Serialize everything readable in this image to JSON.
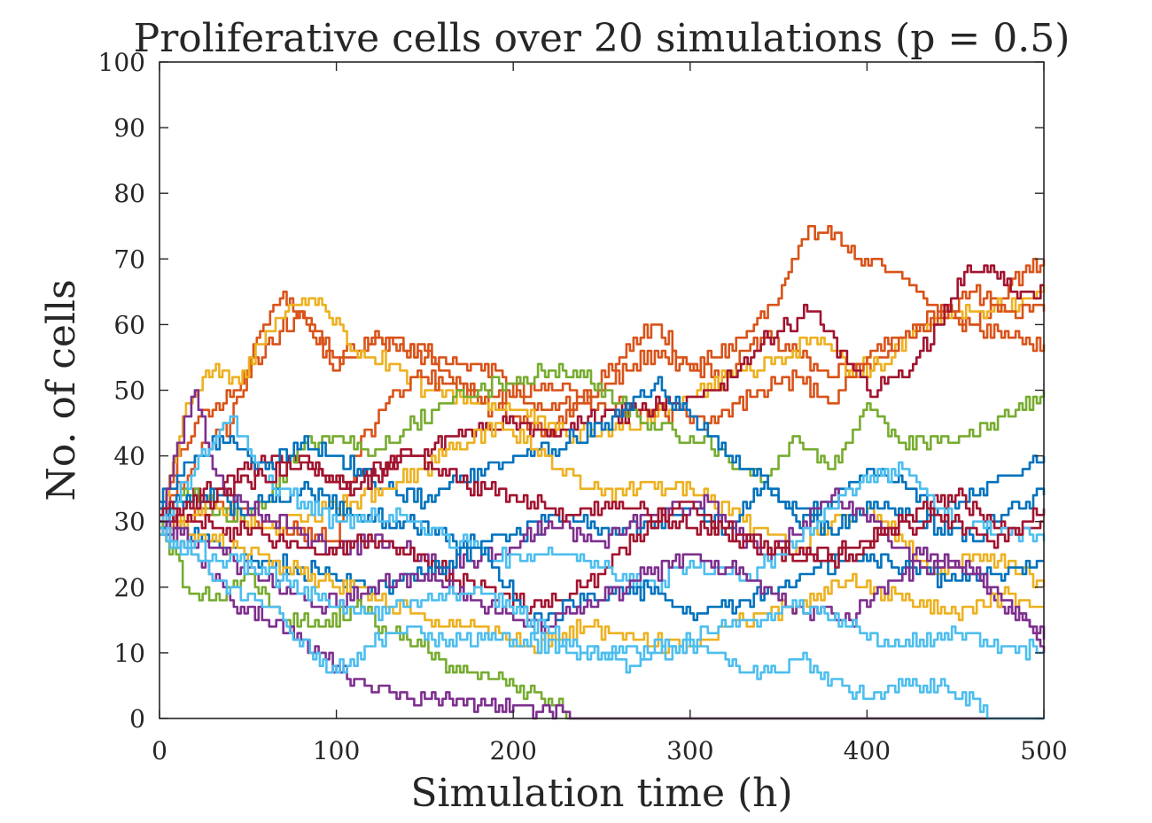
{
  "chart_data": {
    "type": "line",
    "title": "Proliferative cells over 20 simulations (p = 0.5)",
    "xlabel": "Simulation time (h)",
    "ylabel": "No. of cells",
    "xlim": [
      0,
      500
    ],
    "ylim": [
      0,
      100
    ],
    "xticks": [
      0,
      100,
      200,
      300,
      400,
      500
    ],
    "yticks": [
      0,
      10,
      20,
      30,
      40,
      50,
      60,
      70,
      80,
      90,
      100
    ],
    "grid": false,
    "legend": "none",
    "palette": [
      "#0072BD",
      "#D95319",
      "#EDB120",
      "#7E2F8E",
      "#77AC30",
      "#4DBEEE",
      "#A2142F"
    ],
    "series": [
      {
        "color": "#D95319",
        "x": [
          0,
          20,
          40,
          55,
          70,
          85,
          100,
          120,
          150,
          180,
          200,
          220,
          250,
          280,
          300,
          330,
          350,
          365,
          378,
          395,
          420,
          440,
          460,
          480,
          500
        ],
        "y": [
          30,
          40,
          45,
          58,
          65,
          59,
          53,
          58,
          56,
          48,
          46,
          44,
          50,
          56,
          53,
          58,
          64,
          73,
          75,
          70,
          67,
          62,
          60,
          66,
          70
        ]
      },
      {
        "color": "#D95319",
        "x": [
          0,
          20,
          40,
          60,
          80,
          100,
          110,
          130,
          150,
          170,
          190,
          210,
          240,
          260,
          280,
          300,
          320,
          340,
          360,
          380,
          400,
          420,
          440,
          460,
          480,
          500
        ],
        "y": [
          32,
          45,
          49,
          57,
          62,
          55,
          56,
          58,
          55,
          54,
          53,
          48,
          48,
          55,
          60,
          54,
          52,
          58,
          56,
          52,
          54,
          58,
          62,
          60,
          58,
          57
        ]
      },
      {
        "color": "#EDB120",
        "x": [
          0,
          15,
          30,
          45,
          60,
          75,
          90,
          110,
          130,
          150,
          170,
          200,
          230,
          260,
          290,
          320,
          350,
          370,
          390,
          410,
          430,
          450,
          470,
          490,
          500
        ],
        "y": [
          30,
          48,
          53,
          51,
          59,
          63,
          64,
          56,
          54,
          50,
          49,
          47,
          43,
          44,
          48,
          52,
          55,
          58,
          53,
          54,
          60,
          62,
          62,
          64,
          66
        ]
      },
      {
        "color": "#D95319",
        "x": [
          0,
          30,
          60,
          100,
          110,
          130,
          150,
          170,
          190,
          220,
          250,
          280,
          310,
          340,
          360,
          380,
          400,
          420,
          440,
          460,
          480,
          500
        ],
        "y": [
          28,
          32,
          30,
          27,
          40,
          49,
          52,
          50,
          49,
          51,
          48,
          47,
          45,
          50,
          52,
          48,
          55,
          58,
          61,
          65,
          62,
          62
        ]
      },
      {
        "color": "#A2142F",
        "x": [
          0,
          25,
          50,
          75,
          100,
          125,
          150,
          175,
          200,
          225,
          250,
          275,
          300,
          325,
          340,
          355,
          370,
          385,
          400,
          420,
          440,
          455,
          470,
          485,
          500
        ],
        "y": [
          29,
          35,
          38,
          40,
          36,
          38,
          41,
          44,
          45,
          43,
          46,
          47,
          49,
          52,
          57,
          60,
          62,
          56,
          50,
          52,
          60,
          68,
          69,
          64,
          66
        ]
      },
      {
        "color": "#77AC30",
        "x": [
          0,
          20,
          40,
          60,
          80,
          100,
          120,
          140,
          160,
          180,
          200,
          220,
          240,
          260,
          280,
          300,
          320,
          340,
          360,
          380,
          400,
          420,
          440,
          460,
          480,
          500
        ],
        "y": [
          31,
          35,
          30,
          33,
          41,
          43,
          40,
          44,
          48,
          50,
          51,
          53,
          52,
          48,
          44,
          43,
          40,
          36,
          43,
          38,
          48,
          42,
          42,
          43,
          46,
          50
        ]
      },
      {
        "color": "#0072BD",
        "x": [
          0,
          20,
          40,
          60,
          80,
          100,
          120,
          150,
          180,
          200,
          230,
          260,
          280,
          300,
          320,
          340,
          360,
          380,
          400,
          420,
          440,
          460,
          480,
          500
        ],
        "y": [
          33,
          40,
          43,
          38,
          42,
          40,
          36,
          33,
          38,
          40,
          42,
          46,
          51,
          46,
          40,
          37,
          30,
          33,
          38,
          36,
          31,
          34,
          37,
          40
        ]
      },
      {
        "color": "#EDB120",
        "x": [
          0,
          30,
          60,
          100,
          130,
          160,
          190,
          220,
          250,
          280,
          300,
          330,
          360,
          380,
          400,
          420,
          440,
          460,
          480,
          500
        ],
        "y": [
          28,
          33,
          29,
          32,
          35,
          40,
          45,
          40,
          34,
          35,
          35,
          30,
          26,
          30,
          32,
          27,
          22,
          25,
          24,
          20
        ]
      },
      {
        "color": "#0072BD",
        "x": [
          0,
          25,
          50,
          80,
          110,
          140,
          170,
          200,
          230,
          260,
          280,
          300,
          320,
          340,
          360,
          380,
          400,
          430,
          460,
          480,
          500
        ],
        "y": [
          32,
          34,
          32,
          35,
          31,
          30,
          26,
          28,
          31,
          28,
          30,
          32,
          29,
          35,
          32,
          28,
          33,
          30,
          27,
          32,
          34
        ]
      },
      {
        "color": "#7E2F8E",
        "x": [
          0,
          10,
          20,
          30,
          40,
          60,
          80,
          100,
          130,
          160,
          190,
          220,
          250,
          280,
          310,
          340,
          360,
          380,
          400,
          420,
          440,
          460,
          480,
          500
        ],
        "y": [
          30,
          42,
          50,
          38,
          34,
          31,
          28,
          26,
          27,
          23,
          25,
          30,
          27,
          31,
          33,
          25,
          28,
          34,
          30,
          26,
          24,
          22,
          17,
          12
        ]
      },
      {
        "color": "#A2142F",
        "x": [
          0,
          30,
          60,
          90,
          120,
          150,
          180,
          210,
          240,
          270,
          300,
          330,
          360,
          390,
          420,
          450,
          480,
          500
        ],
        "y": [
          31,
          29,
          28,
          25,
          27,
          24,
          20,
          17,
          20,
          28,
          33,
          27,
          24,
          26,
          30,
          34,
          28,
          30
        ]
      },
      {
        "color": "#4DBEEE",
        "x": [
          0,
          20,
          40,
          60,
          80,
          100,
          130,
          160,
          190,
          220,
          250,
          280,
          300,
          330,
          360,
          390,
          420,
          450,
          480,
          500
        ],
        "y": [
          29,
          38,
          46,
          36,
          33,
          30,
          31,
          28,
          24,
          26,
          23,
          20,
          24,
          21,
          27,
          35,
          38,
          30,
          28,
          27
        ]
      },
      {
        "color": "#0072BD",
        "x": [
          0,
          30,
          60,
          90,
          120,
          150,
          180,
          210,
          240,
          270,
          300,
          330,
          360,
          390,
          420,
          450,
          480,
          500
        ],
        "y": [
          30,
          27,
          24,
          22,
          20,
          22,
          26,
          15,
          18,
          20,
          16,
          18,
          21,
          25,
          23,
          21,
          23,
          24
        ]
      },
      {
        "color": "#EDB120",
        "x": [
          0,
          40,
          80,
          120,
          150,
          180,
          210,
          240,
          270,
          300,
          330,
          360,
          390,
          420,
          450,
          480,
          500
        ],
        "y": [
          30,
          26,
          22,
          19,
          15,
          14,
          11,
          14,
          12,
          11,
          15,
          17,
          21,
          18,
          16,
          19,
          17
        ]
      },
      {
        "color": "#7E2F8E",
        "x": [
          0,
          30,
          60,
          90,
          120,
          150,
          180,
          210,
          240,
          270,
          300,
          330,
          360,
          390,
          420,
          450,
          480,
          500
        ],
        "y": [
          29,
          26,
          21,
          17,
          20,
          22,
          18,
          14,
          17,
          21,
          25,
          22,
          17,
          15,
          22,
          24,
          18,
          10
        ]
      },
      {
        "color": "#77AC30",
        "x": [
          0,
          15,
          30,
          50,
          70,
          90,
          110,
          140,
          170,
          200,
          220,
          232,
          260,
          300,
          350,
          400,
          450,
          500
        ],
        "y": [
          30,
          20,
          18,
          22,
          15,
          14,
          17,
          12,
          7,
          5,
          3,
          0,
          0,
          0,
          0,
          0,
          0,
          0
        ]
      },
      {
        "color": "#7E2F8E",
        "x": [
          0,
          20,
          40,
          60,
          80,
          100,
          120,
          140,
          160,
          180,
          200,
          215,
          228,
          232,
          260,
          300,
          350,
          400,
          450,
          500
        ],
        "y": [
          30,
          25,
          18,
          15,
          12,
          8,
          4,
          3,
          3,
          2,
          2,
          1,
          1,
          0,
          0,
          0,
          0,
          0,
          0,
          0
        ]
      },
      {
        "color": "#4DBEEE",
        "x": [
          0,
          40,
          70,
          85,
          100,
          120,
          140,
          160,
          200,
          250,
          300,
          340,
          360,
          380,
          400,
          420,
          440,
          460,
          470,
          500
        ],
        "y": [
          29,
          20,
          15,
          10,
          7,
          11,
          14,
          12,
          12,
          10,
          11,
          7,
          9,
          6,
          3,
          5,
          5,
          3,
          0,
          0
        ]
      },
      {
        "color": "#4DBEEE",
        "x": [
          0,
          30,
          60,
          90,
          120,
          150,
          180,
          210,
          240,
          270,
          300,
          330,
          360,
          390,
          420,
          450,
          480,
          500
        ],
        "y": [
          28,
          25,
          22,
          18,
          16,
          18,
          20,
          15,
          10,
          8,
          12,
          15,
          17,
          14,
          11,
          13,
          11,
          10
        ]
      },
      {
        "color": "#A2142F",
        "x": [
          0,
          25,
          50,
          80,
          110,
          140,
          170,
          200,
          230,
          260,
          290,
          320,
          350,
          380,
          410,
          440,
          470,
          500
        ],
        "y": [
          31,
          33,
          36,
          39,
          35,
          40,
          36,
          34,
          31,
          33,
          30,
          28,
          26,
          24,
          28,
          31,
          27,
          32
        ]
      }
    ]
  }
}
